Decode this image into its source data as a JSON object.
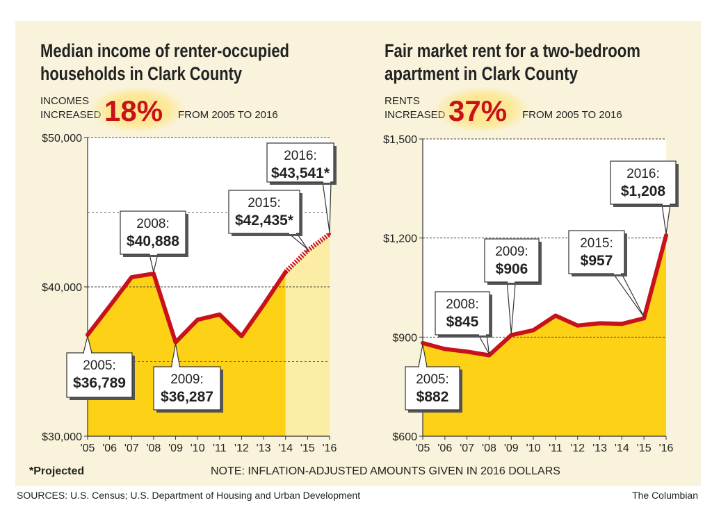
{
  "footer": {
    "sources": "SOURCES: U.S. Census; U.S. Department of Housing and Urban Development",
    "credit": "The Columbian",
    "projected_note": "*Projected",
    "note": "NOTE: INFLATION-ADJUSTED AMOUNTS GIVEN IN 2016 DOLLARS"
  },
  "colors": {
    "background": "#f9f3db",
    "line": "#c8111b",
    "fill": "#fcd116",
    "projected_fill": "#fbeca6",
    "highlight": "#fde68a",
    "text": "#222222"
  },
  "chart_data": [
    {
      "type": "area",
      "title": "Median income of renter-occupied households in Clark County",
      "highlight": {
        "prefix_line1": "INCOMES",
        "prefix_line2": "INCREASED",
        "value": "18%",
        "suffix": "FROM 2005 TO 2016"
      },
      "categories": [
        "'05",
        "'06",
        "'07",
        "'08",
        "'09",
        "'10",
        "'11",
        "'12",
        "'13",
        "'14",
        "'15",
        "'16"
      ],
      "values": [
        36789,
        38700,
        40650,
        40888,
        36287,
        37800,
        38150,
        36700,
        38800,
        41000,
        42435,
        43541
      ],
      "projected_from_index": 9,
      "y_ticks": [
        "$30,000",
        "$40,000",
        "$50,000"
      ],
      "y_tick_values": [
        30000,
        40000,
        50000
      ],
      "ylim": [
        30000,
        50000
      ],
      "dashed_gridlines": [
        35000,
        45000
      ],
      "callouts": [
        {
          "index": 0,
          "line1": "2005:",
          "line2": "$36,789"
        },
        {
          "index": 3,
          "line1": "2008:",
          "line2": "$40,888"
        },
        {
          "index": 4,
          "line1": "2009:",
          "line2": "$36,287"
        },
        {
          "index": 10,
          "line1": "2015:",
          "line2": "$42,435*"
        },
        {
          "index": 11,
          "line1": "2016:",
          "line2": "$43,541*"
        }
      ]
    },
    {
      "type": "area",
      "title": "Fair market rent for a two-bedroom apartment in Clark County",
      "highlight": {
        "prefix_line1": "RENTS",
        "prefix_line2": "INCREASED",
        "value": "37%",
        "suffix": "FROM 2005 TO 2016"
      },
      "categories": [
        "'05",
        "'06",
        "'07",
        "'08",
        "'09",
        "'10",
        "'11",
        "'12",
        "'13",
        "'14",
        "'15",
        "'16"
      ],
      "values": [
        882,
        864,
        856,
        845,
        906,
        921,
        965,
        935,
        942,
        940,
        957,
        1208
      ],
      "projected_from_index": null,
      "y_ticks": [
        "$600",
        "$900",
        "$1,200",
        "$1,500"
      ],
      "y_tick_values": [
        600,
        900,
        1200,
        1500
      ],
      "ylim": [
        600,
        1500
      ],
      "dashed_gridlines": [],
      "callouts": [
        {
          "index": 0,
          "line1": "2005:",
          "line2": "$882"
        },
        {
          "index": 3,
          "line1": "2008:",
          "line2": "$845"
        },
        {
          "index": 4,
          "line1": "2009:",
          "line2": "$906"
        },
        {
          "index": 10,
          "line1": "2015:",
          "line2": "$957"
        },
        {
          "index": 11,
          "line1": "2016:",
          "line2": "$1,208"
        }
      ]
    }
  ]
}
